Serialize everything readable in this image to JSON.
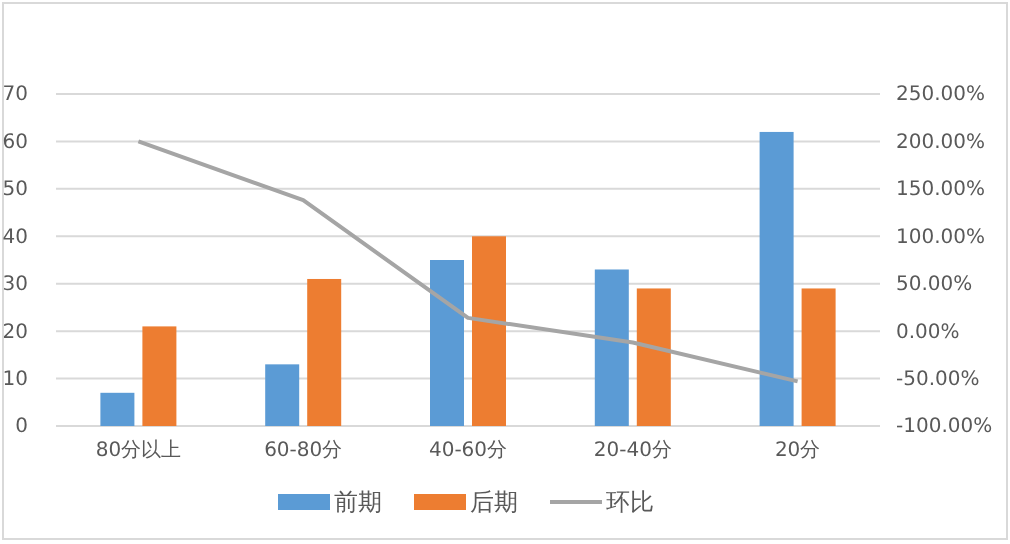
{
  "chart_data": {
    "type": "bar",
    "categories": [
      "80分以上",
      "60-80分",
      "40-60分",
      "20-40分",
      "20分"
    ],
    "series": [
      {
        "name": "前期",
        "color": "#5b9bd5",
        "values": [
          7,
          13,
          35,
          33,
          62
        ]
      },
      {
        "name": "后期",
        "color": "#ed7d31",
        "values": [
          21,
          31,
          40,
          29,
          29
        ]
      },
      {
        "name": "环比",
        "color": "#a5a5a5",
        "type": "line",
        "axis": "y2",
        "values": [
          200,
          138,
          14,
          -12,
          -53
        ]
      }
    ],
    "ylim": [
      0,
      70
    ],
    "yticks": [
      0,
      10,
      20,
      30,
      40,
      50,
      60,
      70
    ],
    "y2lim": [
      -100,
      250
    ],
    "y2ticks": [
      {
        "value": -100,
        "label": "-100.00%"
      },
      {
        "value": -50,
        "label": "-50.00%"
      },
      {
        "value": 0,
        "label": "0.00%"
      },
      {
        "value": 50,
        "label": "50.00%"
      },
      {
        "value": 100,
        "label": "100.00%"
      },
      {
        "value": 150,
        "label": "150.00%"
      },
      {
        "value": 200,
        "label": "200.00%"
      },
      {
        "value": 250,
        "label": "250.00%"
      }
    ],
    "grid": "y",
    "legend": "bottom",
    "marker": "none"
  }
}
